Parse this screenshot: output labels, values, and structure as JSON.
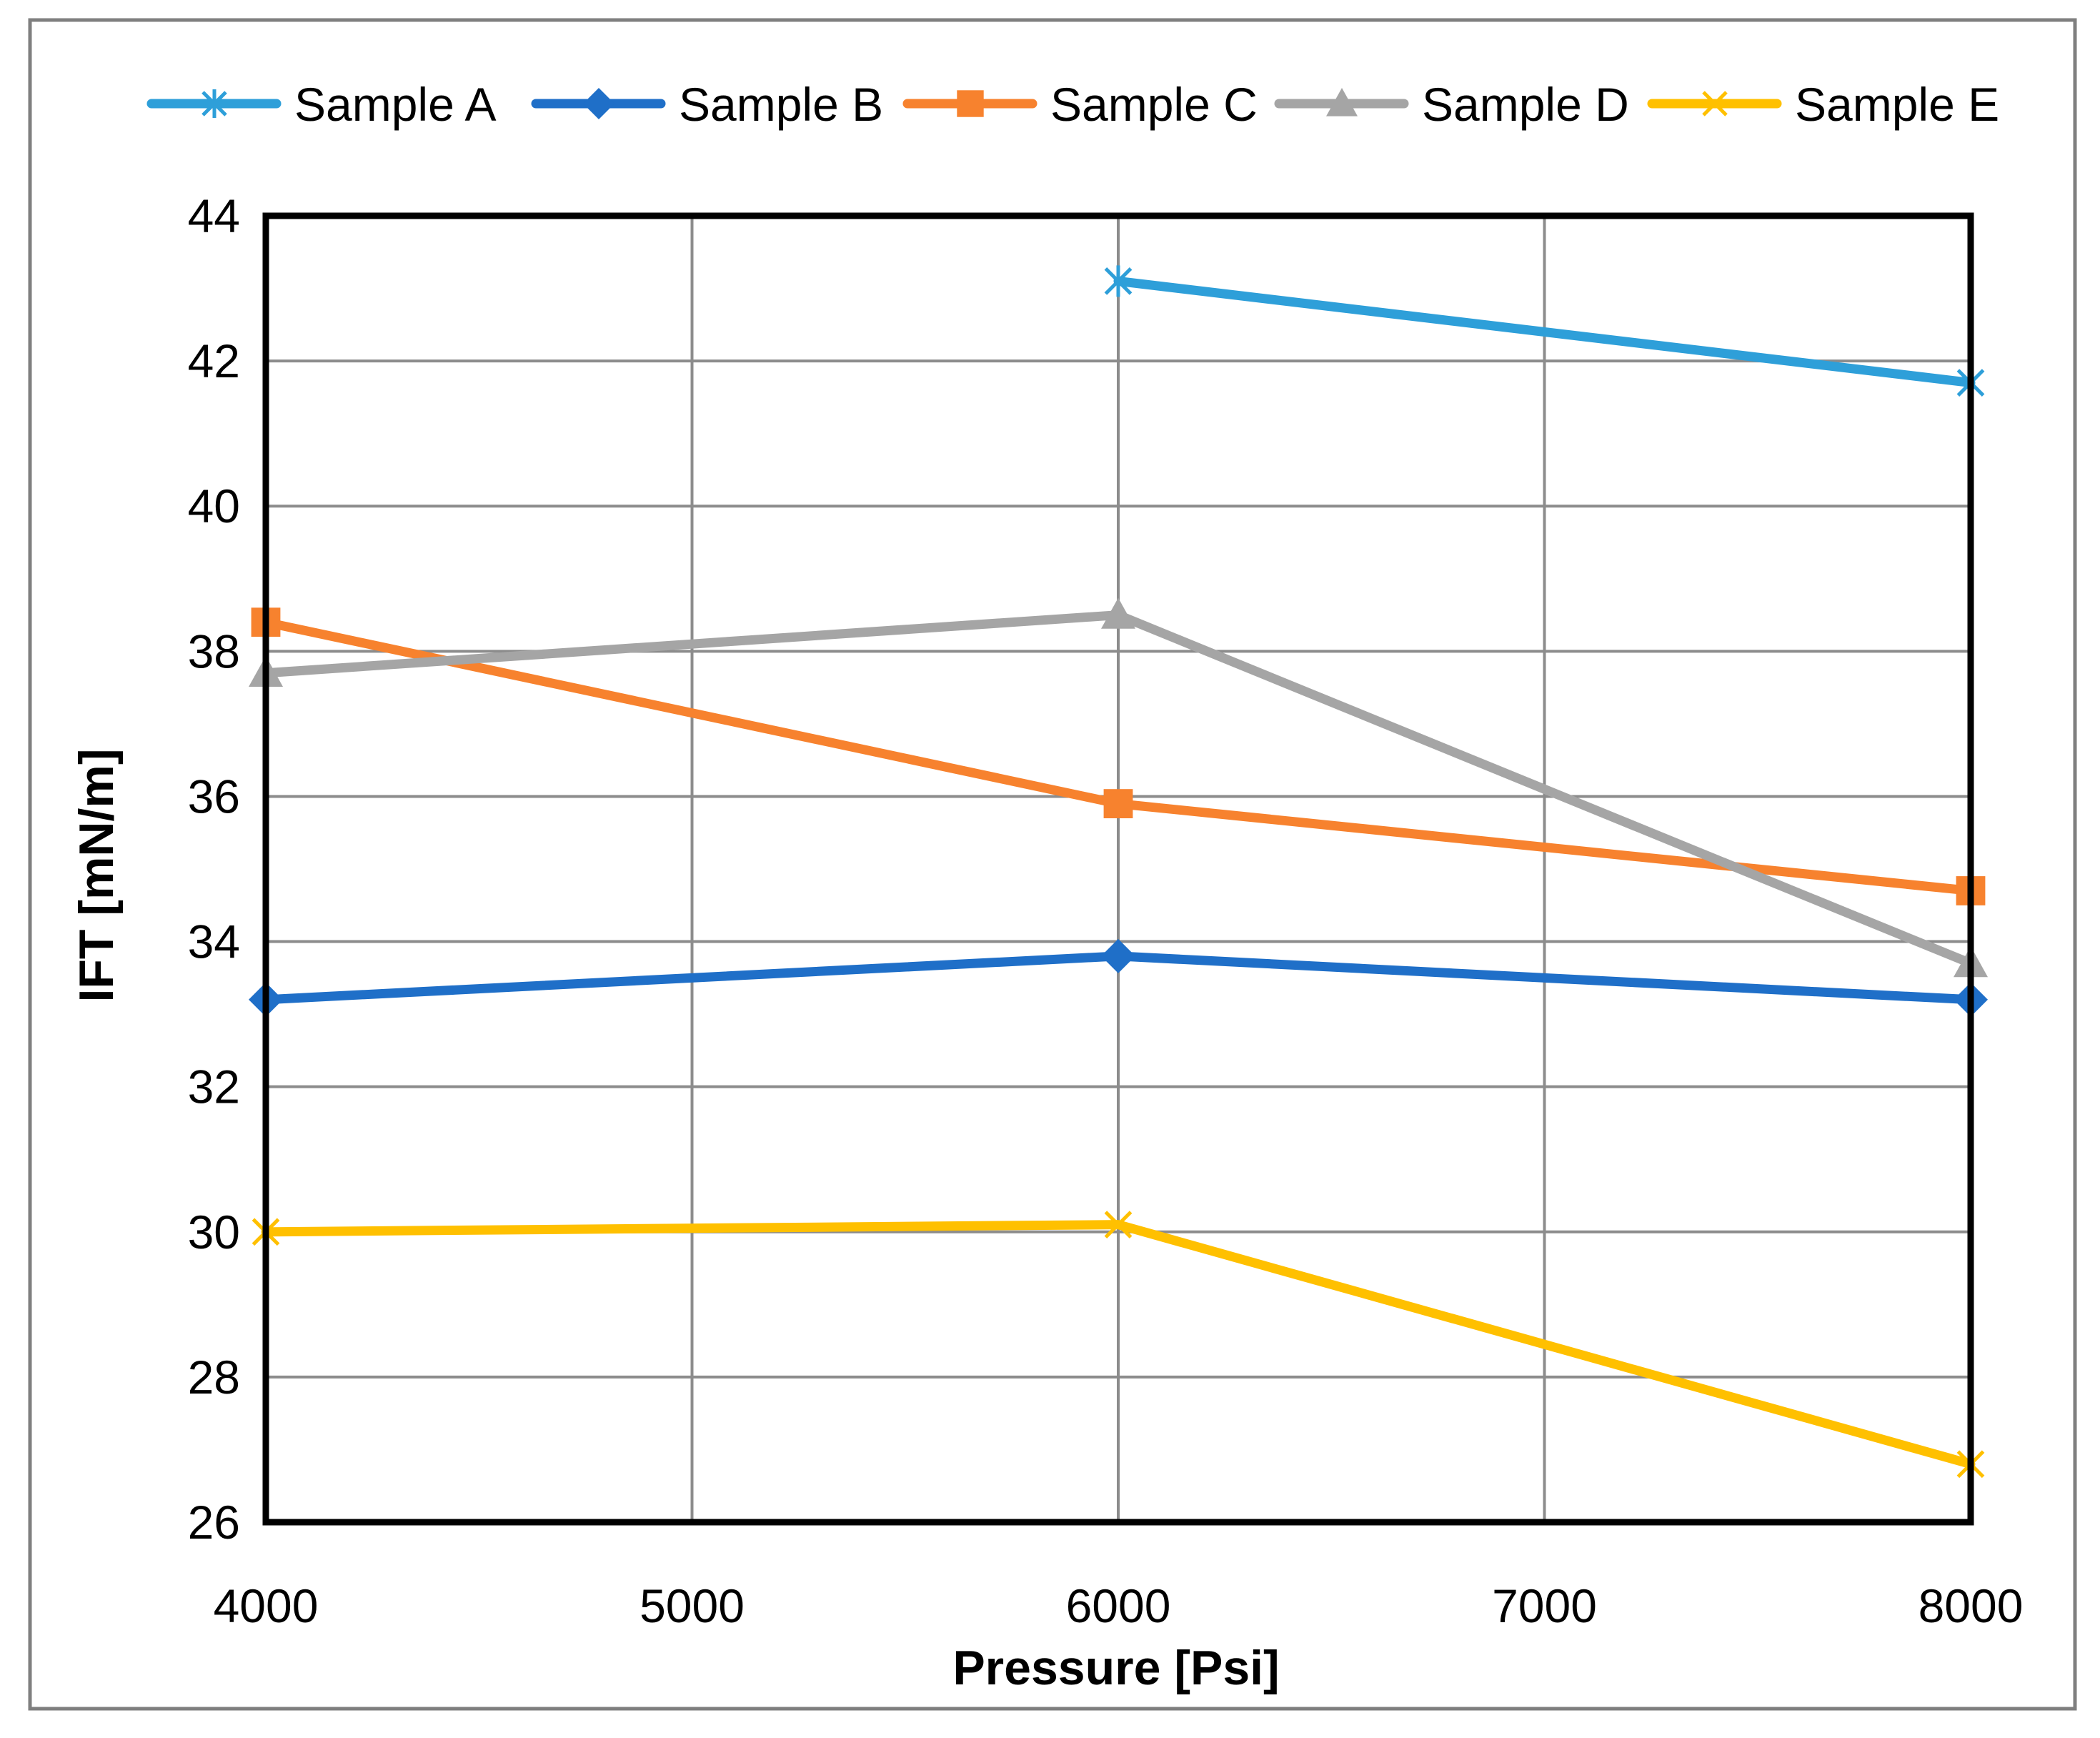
{
  "chart_data": {
    "type": "line",
    "title": "",
    "xlabel": "Pressure [Psi]",
    "ylabel": "IFT [mN/m]",
    "xlim": [
      4000,
      8000
    ],
    "ylim": [
      26,
      44
    ],
    "xticks": [
      4000,
      5000,
      6000,
      7000,
      8000
    ],
    "yticks": [
      26,
      28,
      30,
      32,
      34,
      36,
      38,
      40,
      42,
      44
    ],
    "grid": true,
    "legend_position": "top",
    "series": [
      {
        "name": "Sample A",
        "color": "#2E9FD9",
        "marker": "asterisk",
        "x": [
          6000,
          8000
        ],
        "y": [
          43.1,
          41.7
        ]
      },
      {
        "name": "Sample B",
        "color": "#1F6FC8",
        "marker": "diamond",
        "x": [
          4000,
          6000,
          8000
        ],
        "y": [
          33.2,
          33.8,
          33.2
        ]
      },
      {
        "name": "Sample C",
        "color": "#F7822E",
        "marker": "square",
        "x": [
          4000,
          6000,
          8000
        ],
        "y": [
          38.4,
          35.9,
          34.7
        ]
      },
      {
        "name": "Sample D",
        "color": "#A5A5A5",
        "marker": "triangle",
        "x": [
          4000,
          6000,
          8000
        ],
        "y": [
          37.7,
          38.5,
          33.7
        ]
      },
      {
        "name": "Sample E",
        "color": "#FFC000",
        "marker": "x",
        "x": [
          4000,
          6000,
          8000
        ],
        "y": [
          30.0,
          30.1,
          26.8
        ]
      }
    ]
  }
}
